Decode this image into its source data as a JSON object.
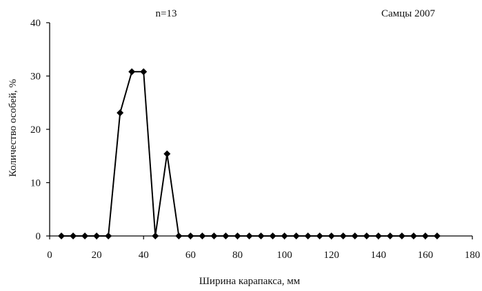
{
  "chart_data": {
    "type": "line",
    "title": "",
    "annotations": {
      "n_label": "n=13",
      "group_label": "Самцы 2007"
    },
    "xlabel": "Ширина карапакса, мм",
    "ylabel": "Количество особей, %",
    "xlim": [
      0,
      180
    ],
    "ylim": [
      0,
      40
    ],
    "xticks": [
      0,
      20,
      40,
      60,
      80,
      100,
      120,
      140,
      160,
      180
    ],
    "yticks": [
      0,
      10,
      20,
      30,
      40
    ],
    "grid": false,
    "legend": "none",
    "marker": "diamond",
    "color": "#000000",
    "series": [
      {
        "x": [
          5,
          10,
          15,
          20,
          25,
          30,
          35,
          40,
          45,
          50,
          55,
          60,
          65,
          70,
          75,
          80,
          85,
          90,
          95,
          100,
          105,
          110,
          115,
          120,
          125,
          130,
          135,
          140,
          145,
          150,
          155,
          160,
          165
        ],
        "values": [
          0,
          0,
          0,
          0,
          0,
          23.1,
          30.8,
          30.8,
          0,
          15.4,
          0,
          0,
          0,
          0,
          0,
          0,
          0,
          0,
          0,
          0,
          0,
          0,
          0,
          0,
          0,
          0,
          0,
          0,
          0,
          0,
          0,
          0,
          0
        ]
      }
    ]
  }
}
